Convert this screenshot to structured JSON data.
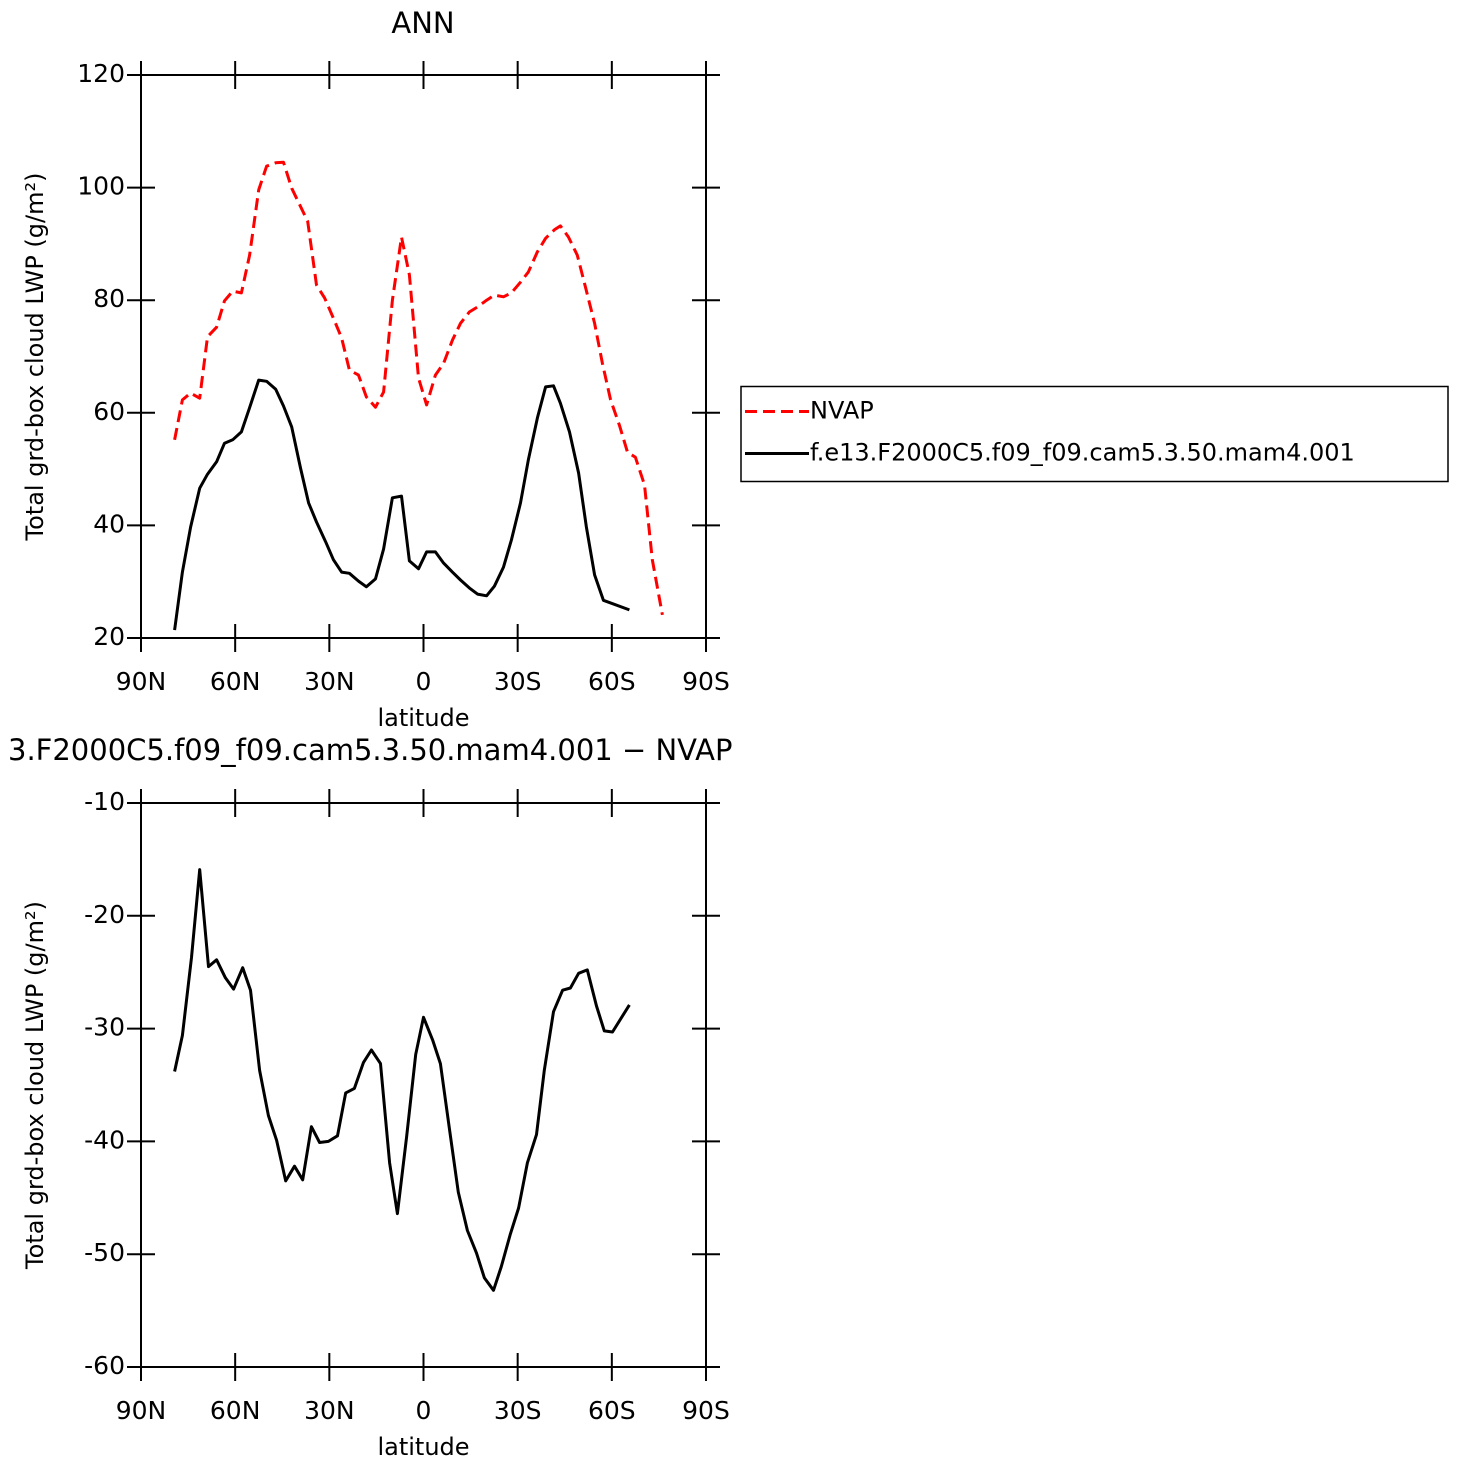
{
  "chart_data": [
    {
      "type": "line",
      "title": "ANN",
      "xlabel": "latitude",
      "ylabel": "Total grd-box cloud LWP (g/m²)",
      "xlim": [
        90,
        -90
      ],
      "xticks": [
        {
          "value": 90,
          "label": "90N"
        },
        {
          "value": 60,
          "label": "60N"
        },
        {
          "value": 30,
          "label": "30N"
        },
        0,
        {
          "value": -30,
          "label": "30S"
        },
        {
          "value": -60,
          "label": "60S"
        },
        {
          "value": -90,
          "label": "90S"
        }
      ],
      "ylim": [
        20,
        120
      ],
      "yticks": [
        20,
        40,
        60,
        80,
        100,
        120
      ],
      "legend_position": "right",
      "series": [
        {
          "name": "NVAP",
          "color": "#ff0000",
          "linestyle": "dashed",
          "x": [
            79.3,
            76.8,
            74.2,
            71.3,
            68.8,
            65.9,
            63.4,
            60.8,
            58.0,
            55.4,
            52.5,
            50.0,
            47.1,
            44.6,
            42.0,
            36.9,
            34.1,
            31.5,
            28.7,
            26.1,
            23.6,
            20.7,
            18.2,
            15.3,
            12.7,
            9.9,
            7.0,
            4.5,
            1.6,
            -1.0,
            -3.8,
            -6.4,
            -9.2,
            -11.8,
            -14.6,
            -17.2,
            -20.1,
            -22.6,
            -25.5,
            -28.0,
            -30.9,
            -33.4,
            -36.3,
            -38.9,
            -41.7,
            -43.6,
            -46.2,
            -49.0,
            -51.6,
            -54.5,
            -57.0,
            -59.6,
            -62.4,
            -65.0,
            -67.5,
            -70.4,
            -72.9,
            -76.1
          ],
          "values": [
            55.2,
            62.3,
            63.5,
            62.6,
            73.5,
            75.2,
            79.9,
            81.6,
            81.3,
            88,
            99.6,
            103.8,
            104.4,
            104.5,
            99.9,
            94,
            82.7,
            80.4,
            76.8,
            73.3,
            67.6,
            66.7,
            62.8,
            61,
            63.7,
            80,
            91.2,
            84.5,
            66.2,
            61.4,
            66.7,
            68.8,
            72.9,
            75.9,
            77.9,
            78.8,
            80,
            80.9,
            80.6,
            81.3,
            83.2,
            85,
            88.6,
            91,
            92.5,
            93.2,
            91.2,
            88,
            82.3,
            75.9,
            68.8,
            62.3,
            57.8,
            53,
            52.1,
            47.2,
            33.9,
            24.1
          ]
        },
        {
          "name": "f.e13.F2000C5.f09_f09.cam5.3.50.mam4.001",
          "color": "#000000",
          "linestyle": "solid",
          "x": [
            79.3,
            76.8,
            74.2,
            71.3,
            68.8,
            65.9,
            63.4,
            60.8,
            58.0,
            55.4,
            52.5,
            50.0,
            47.1,
            44.6,
            42.0,
            39.2,
            36.6,
            34.1,
            31.2,
            28.7,
            26.1,
            23.6,
            20.7,
            18.2,
            15.3,
            12.7,
            9.9,
            7.0,
            4.5,
            1.6,
            -1.0,
            -3.8,
            -6.4,
            -9.2,
            -11.8,
            -14.6,
            -17.2,
            -20.1,
            -22.6,
            -25.5,
            -28.0,
            -30.9,
            -33.4,
            -36.3,
            -38.9,
            -41.4,
            -43.6,
            -46.5,
            -49.4,
            -51.9,
            -54.5,
            -57.3,
            -65.6
          ],
          "values": [
            21.4,
            31.7,
            39.7,
            46.6,
            49.1,
            51.3,
            54.6,
            55.2,
            56.6,
            60.9,
            65.8,
            65.6,
            64.2,
            61.2,
            57.5,
            50.2,
            44,
            40.6,
            37.1,
            33.9,
            31.7,
            31.5,
            30.1,
            29.1,
            30.5,
            35.8,
            44.9,
            45.2,
            33.7,
            32.3,
            35.3,
            35.3,
            33.3,
            31.7,
            30.3,
            28.9,
            27.8,
            27.5,
            29.2,
            32.6,
            37.4,
            44,
            51.6,
            59.1,
            64.6,
            64.8,
            61.7,
            56.6,
            49.3,
            39.7,
            31.2,
            26.7,
            25
          ]
        }
      ]
    },
    {
      "type": "line",
      "title": "3.F2000C5.f09_f09.cam5.3.50.mam4.001 − NVAP",
      "xlabel": "latitude",
      "ylabel": "Total grd-box cloud LWP (g/m²)",
      "xlim": [
        90,
        -90
      ],
      "xticks": [
        {
          "value": 90,
          "label": "90N"
        },
        {
          "value": 60,
          "label": "60N"
        },
        {
          "value": 30,
          "label": "30N"
        },
        0,
        {
          "value": -30,
          "label": "30S"
        },
        {
          "value": -60,
          "label": "60S"
        },
        {
          "value": -90,
          "label": "90S"
        }
      ],
      "ylim": [
        -60,
        -10
      ],
      "yticks": [
        -60,
        -50,
        -40,
        -30,
        -20,
        -10
      ],
      "series": [
        {
          "color": "#000000",
          "linestyle": "solid",
          "x": [
            79.3,
            76.8,
            73.9,
            71.3,
            68.5,
            65.9,
            63.1,
            60.5,
            57.6,
            55.1,
            52.2,
            49.4,
            46.8,
            43.9,
            41.1,
            38.5,
            35.7,
            33.1,
            30.3,
            27.4,
            24.8,
            22.0,
            19.1,
            16.6,
            13.7,
            10.8,
            8.3,
            5.4,
            2.5,
            0,
            -2.9,
            -5.4,
            -8.3,
            -11.1,
            -14.0,
            -16.9,
            -19.4,
            -22.3,
            -24.8,
            -27.7,
            -30.3,
            -33.1,
            -36.0,
            -38.5,
            -41.4,
            -44.3,
            -46.8,
            -49.4,
            -52.2,
            -55.1,
            -57.6,
            -60.2,
            -65.6
          ],
          "values": [
            -33.8,
            -30.6,
            -23.7,
            -15.9,
            -24.5,
            -23.9,
            -25.5,
            -26.5,
            -24.6,
            -26.6,
            -33.7,
            -37.7,
            -39.9,
            -43.5,
            -42.2,
            -43.4,
            -38.7,
            -40.1,
            -40,
            -39.5,
            -35.7,
            -35.3,
            -33,
            -31.9,
            -33.1,
            -41.9,
            -46.4,
            -39.6,
            -32.3,
            -29,
            -31,
            -33.1,
            -39,
            -44.5,
            -47.9,
            -49.9,
            -52.1,
            -53.2,
            -51.1,
            -48.2,
            -45.9,
            -41.9,
            -39.4,
            -33.7,
            -28.5,
            -26.6,
            -26.4,
            -25.1,
            -24.8,
            -28,
            -30.2,
            -30.3,
            -27.9
          ]
        }
      ]
    }
  ]
}
